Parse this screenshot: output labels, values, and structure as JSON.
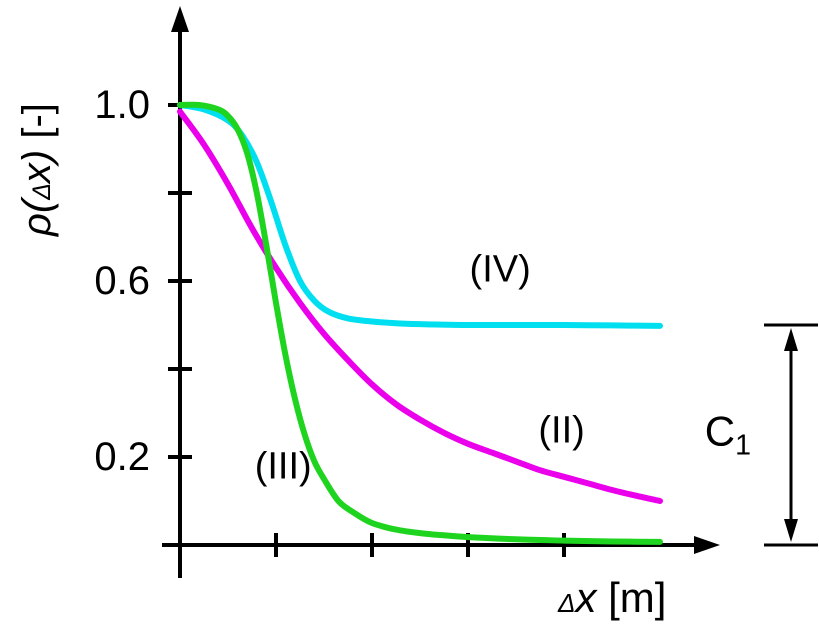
{
  "figure": {
    "background": "#ffffff"
  },
  "chart_data": {
    "type": "line",
    "title": "",
    "xlabel": "Δx [m]",
    "ylabel": "ρ(Δx) [-]",
    "xlabel_parts": {
      "delta": "Δ",
      "x": "x",
      "unit": " [m]"
    },
    "ylabel_parts": {
      "pre": "ρ(",
      "delta": "Δ",
      "x": "x",
      "close": ")",
      "unit": " [-]"
    },
    "xlim": [
      0,
      10
    ],
    "ylim": [
      0,
      1.1
    ],
    "grid": false,
    "legend_position": "inline-labels",
    "axis_color": "#000000",
    "yticks": [
      0.2,
      0.4,
      0.6,
      0.8,
      1.0
    ],
    "ytick_labels": [
      {
        "value": 1.0,
        "label": "1.0"
      },
      {
        "value": 0.6,
        "label": "0.6"
      },
      {
        "value": 0.2,
        "label": "0.2"
      }
    ],
    "xticks": [
      2,
      4,
      6,
      8
    ],
    "xtick_labels": [],
    "series": [
      {
        "name": "(IV)",
        "color": "#00dff0",
        "label_pos": [
          6.67,
          0.625
        ],
        "x": [
          0,
          0.5,
          1.0,
          1.3,
          1.6,
          1.9,
          2.2,
          2.5,
          2.8,
          3.1,
          3.5,
          4.0,
          4.5,
          5.0,
          6.0,
          7.0,
          8.0,
          9.0,
          10.0
        ],
        "y": [
          1.0,
          0.99,
          0.965,
          0.93,
          0.87,
          0.78,
          0.68,
          0.6,
          0.555,
          0.53,
          0.515,
          0.508,
          0.504,
          0.502,
          0.5,
          0.5,
          0.5,
          0.499,
          0.498
        ]
      },
      {
        "name": "(II)",
        "color": "#ea00ea",
        "label_pos": [
          7.95,
          0.26
        ],
        "x": [
          0,
          0.5,
          1.0,
          1.5,
          2.0,
          2.5,
          3.0,
          3.5,
          4.0,
          4.5,
          5.0,
          5.5,
          6.0,
          6.5,
          7.0,
          7.5,
          8.0,
          8.5,
          9.0,
          9.5,
          10.0
        ],
        "y": [
          0.985,
          0.91,
          0.82,
          0.72,
          0.63,
          0.55,
          0.48,
          0.42,
          0.365,
          0.32,
          0.285,
          0.255,
          0.23,
          0.21,
          0.19,
          0.17,
          0.155,
          0.14,
          0.125,
          0.112,
          0.1
        ]
      },
      {
        "name": "(III)",
        "color": "#1fd41f",
        "label_pos": [
          2.15,
          0.177
        ],
        "x": [
          0,
          0.4,
          0.8,
          1.0,
          1.2,
          1.4,
          1.6,
          1.8,
          2.0,
          2.2,
          2.4,
          2.6,
          2.8,
          3.0,
          3.3,
          3.6,
          4.0,
          4.5,
          5.0,
          5.5,
          6.0,
          7.0,
          8.0,
          9.0,
          10.0
        ],
        "y": [
          1.0,
          1.0,
          0.99,
          0.975,
          0.945,
          0.89,
          0.8,
          0.68,
          0.55,
          0.43,
          0.33,
          0.25,
          0.19,
          0.15,
          0.1,
          0.075,
          0.05,
          0.035,
          0.027,
          0.022,
          0.018,
          0.013,
          0.01,
          0.008,
          0.007
        ]
      }
    ],
    "annotation": {
      "label": "C",
      "label_sub": "1",
      "y_from": 0.0,
      "y_to": 0.5
    }
  }
}
